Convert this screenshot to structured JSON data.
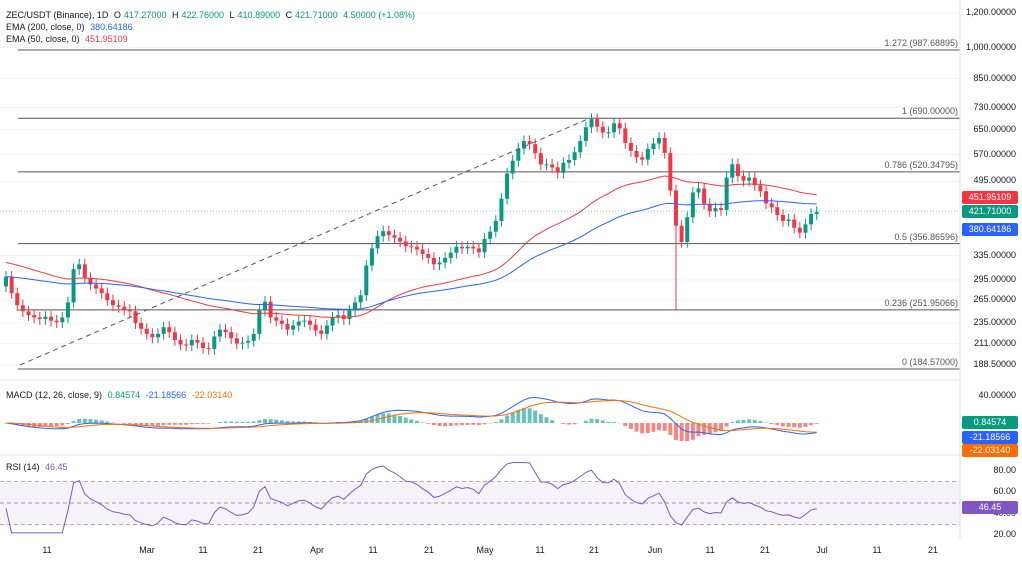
{
  "legend": {
    "symbol": "ZEC/USDT (Binance), 1D",
    "open_label": "O",
    "open": "417.27000",
    "high_label": "H",
    "high": "422.76000",
    "low_label": "L",
    "low": "410.89000",
    "close_label": "C",
    "close": "421.71000",
    "change": "4.50000 (+1.08%)",
    "ema200_label": "EMA (200, close, 0)",
    "ema200_value": "380.64186",
    "ema50_label": "EMA (50, close, 0)",
    "ema50_value": "451.95109",
    "macd_label": "MACD (12, 26, close, 9)",
    "macd_v1": "0.84574",
    "macd_v2": "-21.18566",
    "macd_v3": "-22.03140",
    "rsi_label": "RSI (14)",
    "rsi_value": "46.45"
  },
  "colors": {
    "up": "#089981",
    "down": "#f23645",
    "ema50": "#f23645",
    "ema200": "#2962ff",
    "macd_line": "#2962ff",
    "signal_line": "#ff6d00",
    "rsi": "#7e57c2"
  },
  "price_axis": [
    "1,200.00000",
    "1,000.00000",
    "850.00000",
    "730.00000",
    "650.00000",
    "570.00000",
    "495.00000",
    "335.00000",
    "295.00000",
    "265.00000",
    "235.00000",
    "211.00000",
    "188.50000"
  ],
  "macd_axis": [
    "40.00000"
  ],
  "rsi_axis": [
    "80.00",
    "60.00",
    "40.00",
    "20.00"
  ],
  "time_axis": [
    "11",
    "Mar",
    "11",
    "21",
    "Apr",
    "11",
    "21",
    "May",
    "11",
    "21",
    "Jun",
    "11",
    "21",
    "Jul",
    "11",
    "21"
  ],
  "fib_levels": [
    {
      "label": "1.272 (987.68895)",
      "price": 987.69
    },
    {
      "label": "1 (690.00000)",
      "price": 690
    },
    {
      "label": "0.786 (520.34795)",
      "price": 520.35
    },
    {
      "label": "0.5 (356.86596)",
      "price": 356.87
    },
    {
      "label": "0.236 (251.95066)",
      "price": 251.95
    },
    {
      "label": "0 (184.57000)",
      "price": 184.57
    }
  ],
  "badges": {
    "ema50": "451.95109",
    "close": "421.71000",
    "ema200": "380.64186",
    "macd": "0.84574",
    "macd_line": "-21.18566",
    "signal": "-22.03140",
    "rsi": "46.45"
  },
  "chart_data": {
    "type": "candlestick",
    "scale": "log",
    "ylim": [
      180,
      1250
    ],
    "x_label_dates": [
      "Feb 11",
      "Mar 1",
      "Mar 11",
      "Mar 21",
      "Apr 1",
      "Apr 11",
      "Apr 21",
      "May 1",
      "May 11",
      "May 21",
      "Jun 1",
      "Jun 11",
      "Jun 21",
      "Jul 1",
      "Jul 11",
      "Jul 21"
    ],
    "closes": [
      300,
      275,
      258,
      250,
      245,
      242,
      240,
      243,
      238,
      236,
      242,
      262,
      312,
      320,
      298,
      288,
      282,
      275,
      265,
      258,
      256,
      252,
      250,
      235,
      228,
      222,
      218,
      222,
      230,
      224,
      215,
      210,
      209,
      215,
      212,
      206,
      205,
      219,
      227,
      224,
      217,
      211,
      212,
      214,
      222,
      251,
      263,
      242,
      238,
      234,
      227,
      232,
      237,
      238,
      233,
      226,
      222,
      232,
      242,
      245,
      240,
      251,
      262,
      272,
      318,
      348,
      371,
      381,
      373,
      368,
      361,
      352,
      351,
      346,
      338,
      331,
      320,
      323,
      331,
      340,
      351,
      348,
      351,
      348,
      341,
      366,
      380,
      402,
      452,
      516,
      552,
      588,
      612,
      602,
      574,
      541,
      541,
      533,
      518,
      546,
      554,
      577,
      612,
      658,
      687,
      660,
      640,
      641,
      672,
      654,
      606,
      581,
      562,
      555,
      587,
      604,
      622,
      575,
      472,
      392,
      360,
      410,
      467,
      477,
      440,
      423,
      430,
      426,
      505,
      542,
      509,
      497,
      505,
      485,
      470,
      441,
      432,
      415,
      402,
      405,
      388,
      378,
      395,
      417,
      422
    ],
    "ema50_note": "EMA(50) ends 451.95109",
    "ema200_note": "EMA(200) ends 380.64186",
    "rsi_last": 46.45
  }
}
